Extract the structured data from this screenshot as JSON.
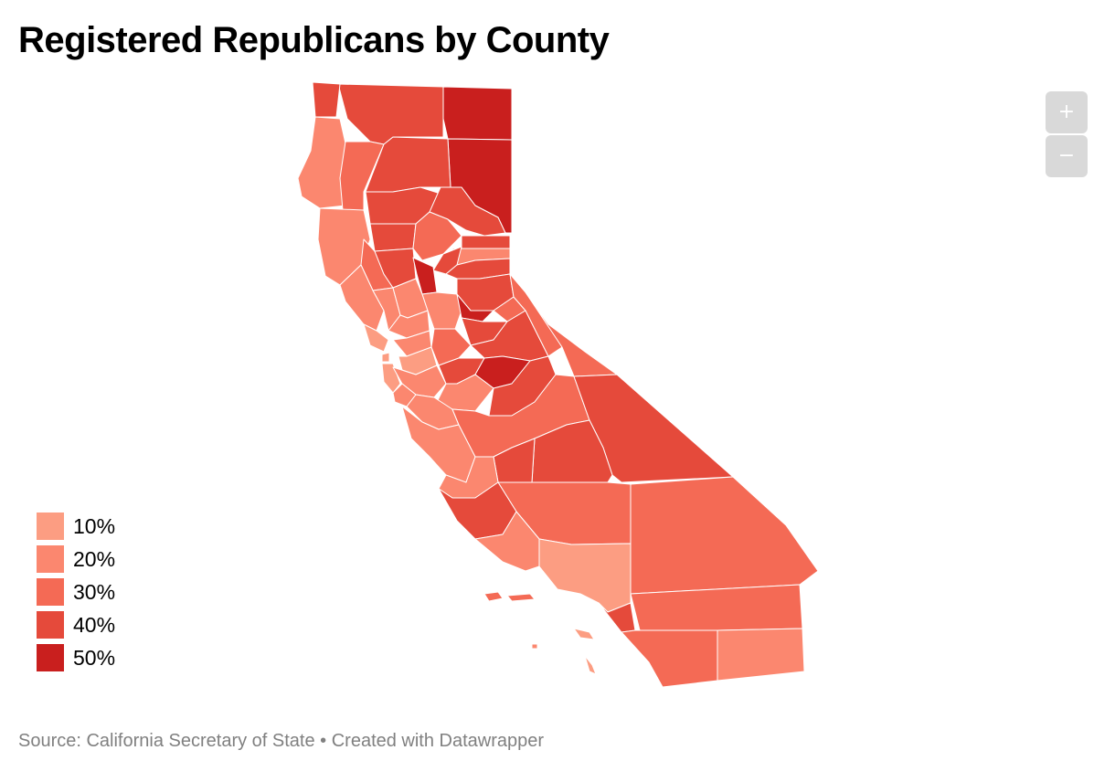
{
  "title": "Registered Republicans by County",
  "source": "Source: California Secretary of State • Created with Datawrapper",
  "zoom": {
    "in_label": "+",
    "out_label": "−"
  },
  "legend": [
    {
      "label": "10%",
      "color": "#fc9d82"
    },
    {
      "label": "20%",
      "color": "#fb876f"
    },
    {
      "label": "30%",
      "color": "#f46a55"
    },
    {
      "label": "40%",
      "color": "#e54a3b"
    },
    {
      "label": "50%",
      "color": "#c91f1e"
    }
  ],
  "colors": {
    "border": "#ffffff",
    "zoom_bg": "#d9d9d9",
    "source": "#808080"
  }
}
